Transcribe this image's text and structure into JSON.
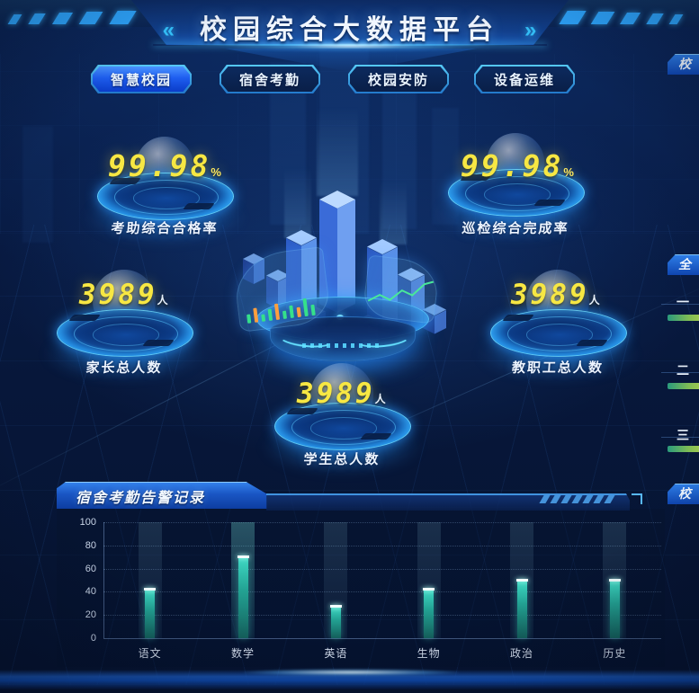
{
  "header": {
    "title": "校园综合大数据平台",
    "left_arrow": "«",
    "right_arrow": "»"
  },
  "tabs": [
    {
      "label": "智慧校园",
      "active": true
    },
    {
      "label": "宿舍考勤",
      "active": false
    },
    {
      "label": "校园安防",
      "active": false
    },
    {
      "label": "设备运维",
      "active": false
    }
  ],
  "stats": {
    "attendance": {
      "value": "99.98",
      "unit": "%",
      "label": "考助综合合格率"
    },
    "inspection": {
      "value": "99.98",
      "unit": "%",
      "label": "巡检综合完成率"
    },
    "parents": {
      "value": "3989",
      "unit": "人",
      "label": "家长总人数"
    },
    "staff": {
      "value": "3989",
      "unit": "人",
      "label": "教职工总人数"
    },
    "students": {
      "value": "3989",
      "unit": "人",
      "label": "学生总人数"
    }
  },
  "alarm_panel": {
    "title": "宿舍考勤告警记录"
  },
  "chart_data": {
    "type": "bar",
    "title": "宿舍考勤告警记录",
    "categories": [
      "语文",
      "数学",
      "英语",
      "生物",
      "政治",
      "历史"
    ],
    "values": [
      42,
      70,
      27,
      42,
      50,
      50
    ],
    "ylim": [
      0,
      100
    ],
    "yticks": [
      0,
      20,
      40,
      60,
      80,
      100
    ],
    "xlabel": "",
    "ylabel": "",
    "grid": true,
    "legend": false,
    "highlight_category": "数学",
    "bar_color": "#2fd6c0"
  },
  "right_edge": {
    "top_panel_title_partial": "校",
    "middle_panel_title_partial": "全",
    "bottom_panel_title_partial": "校",
    "rank_labels": [
      "一",
      "二",
      "三"
    ]
  },
  "colors": {
    "accent_cyan": "#3fd4ff",
    "value_yellow": "#f7e743",
    "bar_teal": "#2fd6c0",
    "active_tab_blue": "#1e5ef0",
    "background_navy": "#07173a"
  }
}
